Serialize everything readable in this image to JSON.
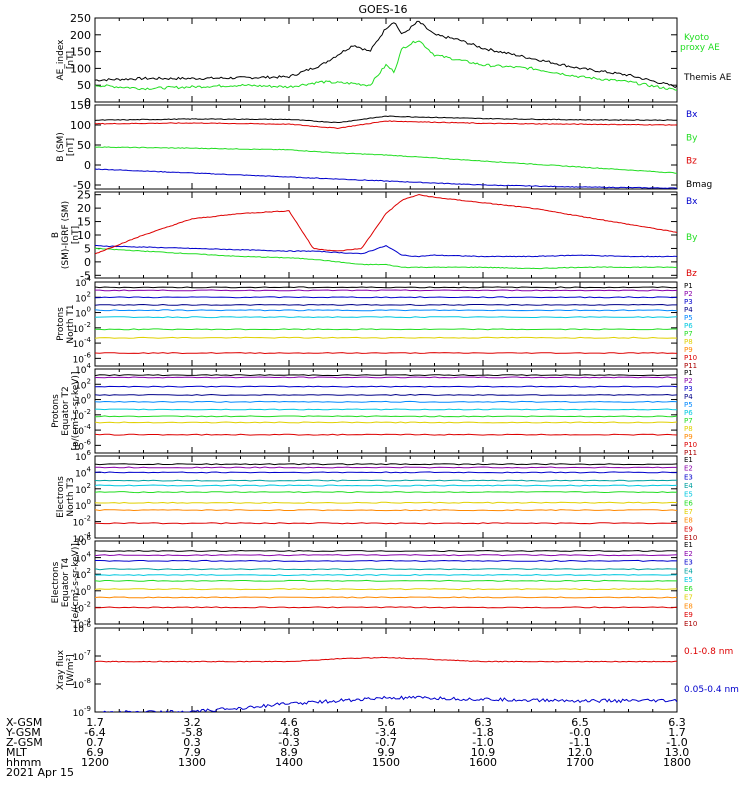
{
  "title": "GOES-16",
  "colors": {
    "black": "#000000",
    "red": "#dd0000",
    "green": "#22dd22",
    "blue": "#0000cc",
    "navy": "#000088",
    "cyan": "#00c8e0",
    "teal": "#00a0a0",
    "yellow": "#e0d000",
    "orange": "#ff8800",
    "darkred": "#aa0000"
  },
  "x_axis": {
    "ticks": [
      "1200",
      "1300",
      "1400",
      "1500",
      "1600",
      "1700",
      "1800"
    ],
    "rows": [
      {
        "label": "X-GSM",
        "values": [
          "1.7",
          "3.2",
          "4.6",
          "5.6",
          "6.3",
          "6.5",
          "6.3"
        ]
      },
      {
        "label": "Y-GSM",
        "values": [
          "-6.4",
          "-5.8",
          "-4.8",
          "-3.4",
          "-1.8",
          "-0.0",
          "1.7"
        ]
      },
      {
        "label": "Z-GSM",
        "values": [
          "0.7",
          "0.3",
          "-0.3",
          "-0.7",
          "-1.0",
          "-1.1",
          "-1.0"
        ]
      },
      {
        "label": "MLT",
        "values": [
          "6.9",
          "7.9",
          "8.9",
          "9.9",
          "10.9",
          "12.0",
          "13.0"
        ]
      },
      {
        "label": "hhmm",
        "values": [
          "1200",
          "1300",
          "1400",
          "1500",
          "1600",
          "1700",
          "1800"
        ]
      }
    ],
    "date": "2021 Apr 15"
  },
  "chart_data": [
    {
      "type": "line",
      "ylabel": "AE_index [nT]",
      "ylim": [
        0,
        250
      ],
      "yticks": [
        "0",
        "50",
        "100",
        "150",
        "200",
        "250"
      ],
      "x": [
        1200,
        1230,
        1300,
        1330,
        1400,
        1420,
        1440,
        1450,
        1500,
        1505,
        1510,
        1520,
        1530,
        1545,
        1600,
        1630,
        1700,
        1730,
        1800
      ],
      "series": [
        {
          "name": "Themis AE",
          "color": "#000000",
          "values": [
            65,
            70,
            70,
            72,
            75,
            110,
            170,
            150,
            220,
            240,
            200,
            240,
            200,
            185,
            160,
            130,
            100,
            80,
            45
          ]
        },
        {
          "name": "Kyoto proxy AE",
          "color": "#22dd22",
          "values": [
            50,
            40,
            45,
            50,
            45,
            60,
            55,
            50,
            110,
            90,
            160,
            185,
            140,
            125,
            110,
            100,
            75,
            60,
            35
          ]
        }
      ],
      "legend": [
        "Kyoto",
        "proxy AE",
        "Themis AE"
      ]
    },
    {
      "type": "line",
      "ylabel": "B (SM) [nT]",
      "ylim": [
        -60,
        150
      ],
      "yticks": [
        "-50",
        "0",
        "50",
        "100",
        "150"
      ],
      "x": [
        1200,
        1300,
        1400,
        1430,
        1500,
        1600,
        1700,
        1800
      ],
      "series": [
        {
          "name": "Bx",
          "color": "#0000cc",
          "values": [
            -10,
            -20,
            -30,
            -35,
            -40,
            -50,
            -55,
            -58
          ]
        },
        {
          "name": "By",
          "color": "#22dd22",
          "values": [
            45,
            42,
            38,
            30,
            25,
            10,
            -5,
            -20
          ]
        },
        {
          "name": "Bz",
          "color": "#dd0000",
          "values": [
            103,
            105,
            102,
            92,
            110,
            104,
            102,
            100
          ]
        },
        {
          "name": "Bmag",
          "color": "#000000",
          "values": [
            112,
            115,
            114,
            106,
            122,
            116,
            113,
            112
          ]
        }
      ],
      "legend": [
        "Bx",
        "By",
        "Bz",
        "Bmag"
      ]
    },
    {
      "type": "line",
      "ylabel": "B (SM)-IGRF (SM) [nT]",
      "ylim": [
        -6,
        26
      ],
      "yticks": [
        "-5",
        "0",
        "5",
        "10",
        "15",
        "20",
        "25"
      ],
      "x": [
        1200,
        1230,
        1300,
        1330,
        1400,
        1415,
        1430,
        1445,
        1500,
        1510,
        1520,
        1530,
        1600,
        1630,
        1700,
        1730,
        1800
      ],
      "series": [
        {
          "name": "Bx",
          "color": "#0000cc",
          "values": [
            6,
            5.5,
            5,
            4.5,
            4,
            4,
            3.5,
            3,
            6,
            2.5,
            2,
            2.5,
            2,
            2,
            2.5,
            2,
            2
          ]
        },
        {
          "name": "By",
          "color": "#22dd22",
          "values": [
            5,
            4,
            3,
            2,
            1.5,
            1,
            0,
            -1,
            -1,
            -2,
            -2,
            -2,
            -2,
            -2.5,
            -2,
            -2,
            -2
          ]
        },
        {
          "name": "Bz",
          "color": "#dd0000",
          "values": [
            3,
            10,
            16,
            18,
            19,
            5,
            4,
            5,
            18,
            23,
            25,
            24,
            22,
            20,
            17,
            14,
            11
          ]
        }
      ],
      "legend": [
        "Bx",
        "By",
        "Bz"
      ]
    },
    {
      "type": "line",
      "ylabel": "Protons North T1",
      "ylim": [
        -7,
        4
      ],
      "ylog": true,
      "yticks": [
        "10^-6",
        "10^-4",
        "10^-2",
        "10^0",
        "10^2",
        "10^4"
      ],
      "legend": [
        "P1",
        "P2",
        "P3",
        "P4",
        "P5",
        "P6",
        "P7",
        "P8",
        "P9",
        "P10",
        "P11"
      ],
      "series": [
        {
          "name": "P1",
          "color": "#000000",
          "values": [
            3.3,
            3.3
          ]
        },
        {
          "name": "P2",
          "color": "#8800aa",
          "values": [
            2.9,
            2.9
          ]
        },
        {
          "name": "P3",
          "color": "#0000cc",
          "values": [
            2.0,
            2.0
          ]
        },
        {
          "name": "P4",
          "color": "#000088",
          "values": [
            1.0,
            1.0
          ]
        },
        {
          "name": "P5",
          "color": "#0088ff",
          "values": [
            0.3,
            0.3
          ]
        },
        {
          "name": "P6",
          "color": "#00c8e0",
          "values": [
            -0.6,
            -0.6
          ]
        },
        {
          "name": "P7",
          "color": "#22dd22",
          "values": [
            -2.2,
            -2.2
          ]
        },
        {
          "name": "P8",
          "color": "#e0d000",
          "values": [
            -3.3,
            -3.3
          ]
        },
        {
          "name": "P10",
          "color": "#dd0000",
          "values": [
            -5.3,
            -5.3
          ]
        }
      ]
    },
    {
      "type": "line",
      "ylabel": "Protons Equator T2 [p/(cm²-s-sr-keV)]",
      "ylim": [
        -7,
        4
      ],
      "ylog": true,
      "yticks": [
        "10^-6",
        "10^-4",
        "10^-2",
        "10^0",
        "10^2",
        "10^4"
      ],
      "legend": [
        "P1",
        "P2",
        "P3",
        "P4",
        "P5",
        "P6",
        "P7",
        "P8",
        "P9",
        "P10",
        "P11"
      ],
      "series": [
        {
          "name": "P1",
          "color": "#000000",
          "values": [
            3.2,
            3.2
          ]
        },
        {
          "name": "P2",
          "color": "#8800aa",
          "values": [
            2.9,
            2.9
          ]
        },
        {
          "name": "P3",
          "color": "#0000cc",
          "values": [
            1.7,
            1.7
          ]
        },
        {
          "name": "P4",
          "color": "#000088",
          "values": [
            0.6,
            0.6
          ]
        },
        {
          "name": "P5",
          "color": "#0088ff",
          "values": [
            -0.3,
            -0.3
          ]
        },
        {
          "name": "P6",
          "color": "#00c8e0",
          "values": [
            -1.3,
            -1.3
          ]
        },
        {
          "name": "P7",
          "color": "#22dd22",
          "values": [
            -2.2,
            -2.2
          ]
        },
        {
          "name": "P8",
          "color": "#e0d000",
          "values": [
            -3.0,
            -3.0
          ]
        },
        {
          "name": "P10",
          "color": "#dd0000",
          "values": [
            -4.6,
            -4.6
          ]
        }
      ]
    },
    {
      "type": "line",
      "ylabel": "Electrons North T3",
      "ylim": [
        -4,
        6
      ],
      "ylog": true,
      "yticks": [
        "10^-4",
        "10^-2",
        "10^0",
        "10^2",
        "10^4",
        "10^6"
      ],
      "legend": [
        "E1",
        "E2",
        "E3",
        "E4",
        "E5",
        "E6",
        "E7",
        "E8",
        "E9",
        "E10"
      ],
      "series": [
        {
          "name": "E1",
          "color": "#000000",
          "values": [
            5.0,
            5.0
          ]
        },
        {
          "name": "E2",
          "color": "#8800aa",
          "values": [
            4.6,
            4.6
          ]
        },
        {
          "name": "E3",
          "color": "#0000cc",
          "values": [
            4.0,
            4.0
          ]
        },
        {
          "name": "E4",
          "color": "#00a0a0",
          "values": [
            3.0,
            3.0
          ]
        },
        {
          "name": "E5",
          "color": "#00c8e0",
          "values": [
            2.4,
            2.4
          ]
        },
        {
          "name": "E6",
          "color": "#22dd22",
          "values": [
            1.6,
            1.6
          ]
        },
        {
          "name": "E7",
          "color": "#e0d000",
          "values": [
            0.3,
            0.3
          ]
        },
        {
          "name": "E8",
          "color": "#ff8800",
          "values": [
            -0.6,
            -0.6
          ]
        },
        {
          "name": "E9",
          "color": "#dd0000",
          "values": [
            -2.2,
            -2.2
          ]
        }
      ]
    },
    {
      "type": "line",
      "ylabel": "Electrons Equator T4 [e/(cm²-s-sr-keV)]",
      "ylim": [
        -4,
        6
      ],
      "ylog": true,
      "yticks": [
        "10^-4",
        "10^-2",
        "10^0",
        "10^2",
        "10^4",
        "10^6"
      ],
      "legend": [
        "E1",
        "E2",
        "E3",
        "E4",
        "E5",
        "E6",
        "E7",
        "E8",
        "E9",
        "E10"
      ],
      "series": [
        {
          "name": "E1",
          "color": "#000000",
          "values": [
            4.8,
            4.8
          ]
        },
        {
          "name": "E2",
          "color": "#8800aa",
          "values": [
            4.3,
            4.3
          ]
        },
        {
          "name": "E3",
          "color": "#0000cc",
          "values": [
            3.6,
            3.6
          ]
        },
        {
          "name": "E4",
          "color": "#00a0a0",
          "values": [
            2.6,
            2.6
          ]
        },
        {
          "name": "E5",
          "color": "#00c8e0",
          "values": [
            1.9,
            1.9
          ]
        },
        {
          "name": "E6",
          "color": "#22dd22",
          "values": [
            1.2,
            1.2
          ]
        },
        {
          "name": "E7",
          "color": "#e0d000",
          "values": [
            0.2,
            0.2
          ]
        },
        {
          "name": "E8",
          "color": "#ff8800",
          "values": [
            -0.8,
            -0.8
          ]
        },
        {
          "name": "E9",
          "color": "#dd0000",
          "values": [
            -2.0,
            -2.0
          ]
        }
      ]
    },
    {
      "type": "line",
      "ylabel": "Xray flux [W/m²]",
      "ylim": [
        -9,
        -6
      ],
      "ylog": true,
      "yticks": [
        "10^-9",
        "10^-8",
        "10^-7",
        "10^-6"
      ],
      "x": [
        1200,
        1300,
        1400,
        1430,
        1500,
        1520,
        1600,
        1700,
        1800
      ],
      "series": [
        {
          "name": "0.1-0.8 nm",
          "color": "#dd0000",
          "values": [
            -7.2,
            -7.2,
            -7.2,
            -7.1,
            -7.05,
            -7.1,
            -7.2,
            -7.2,
            -7.2
          ]
        },
        {
          "name": "0.05-0.4 nm",
          "color": "#0000cc",
          "values": [
            -9.0,
            -9.0,
            -8.7,
            -8.6,
            -8.5,
            -8.5,
            -8.55,
            -8.6,
            -8.6
          ]
        }
      ],
      "legend": [
        "0.1-0.8 nm",
        "0.05-0.4 nm"
      ]
    }
  ]
}
